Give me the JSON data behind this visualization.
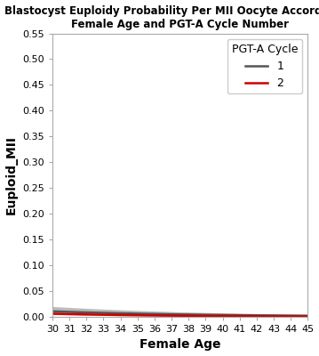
{
  "title": "Blastocyst Euploidy Probability Per MII Oocyte According to\nFemale Age and PGT-A Cycle Number",
  "xlabel": "Female Age",
  "ylabel": "Euploid_MII",
  "xlim": [
    30,
    45
  ],
  "ylim": [
    0.0,
    0.55
  ],
  "xticks": [
    30,
    31,
    32,
    33,
    34,
    35,
    36,
    37,
    38,
    39,
    40,
    41,
    42,
    43,
    44,
    45
  ],
  "yticks": [
    0.0,
    0.05,
    0.1,
    0.15,
    0.2,
    0.25,
    0.3,
    0.35,
    0.4,
    0.45,
    0.5,
    0.55
  ],
  "cycle1_a": -1.1,
  "cycle1_b": -0.115,
  "cycle2_a": -0.7,
  "cycle2_b": -0.148,
  "cycle1_ci_upper_a": -0.9,
  "cycle1_ci_upper_b": -0.1,
  "cycle1_ci_lower_a": -1.3,
  "cycle1_ci_lower_b": -0.13,
  "cycle2_ci_upper_a": -0.3,
  "cycle2_ci_upper_b": -0.148,
  "cycle2_ci_lower_a": -1.1,
  "cycle2_ci_lower_b": -0.148,
  "cycle1_color": "#555555",
  "cycle2_color": "#cc0000",
  "cycle1_ci_color": "#aaaaaa",
  "cycle2_ci_color": "#f0a0a0",
  "background_color": "#ffffff",
  "legend_title": "PGT-A Cycle",
  "legend_label1": "1",
  "legend_label2": "2",
  "title_fontsize": 8.5,
  "axis_label_fontsize": 10,
  "tick_fontsize": 8,
  "legend_fontsize": 9,
  "line_width": 1.8,
  "fig_width": 3.59,
  "fig_height": 4.0,
  "dpi": 100
}
